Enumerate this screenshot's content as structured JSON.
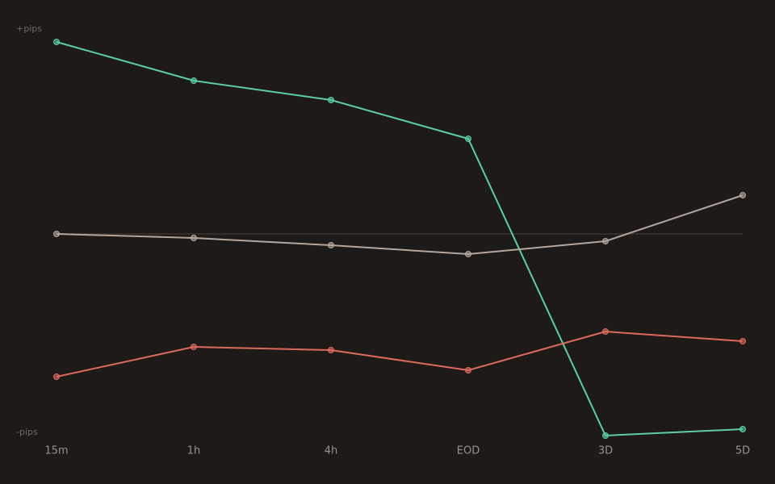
{
  "chart_data": {
    "type": "line",
    "categories": [
      "15m",
      "1h",
      "4h",
      "EOD",
      "3D",
      "5D"
    ],
    "series": [
      {
        "color": "#5ccf9f",
        "values": [
          95.2,
          76,
          66.4,
          47.2,
          -100,
          -96.8
        ]
      },
      {
        "color": "#b3a69c",
        "values": [
          0,
          -2,
          -5.6,
          -10,
          -3.6,
          19.2
        ]
      },
      {
        "color": "#dc6a5c",
        "values": [
          -70.8,
          -56,
          -57.6,
          -67.6,
          -48.4,
          -53.2
        ]
      }
    ],
    "ylim": [
      -100,
      100
    ],
    "yticks": [
      {
        "value": 100,
        "label": "+pips"
      },
      {
        "value": -100,
        "label": "-pips"
      }
    ],
    "baseline": 0
  }
}
